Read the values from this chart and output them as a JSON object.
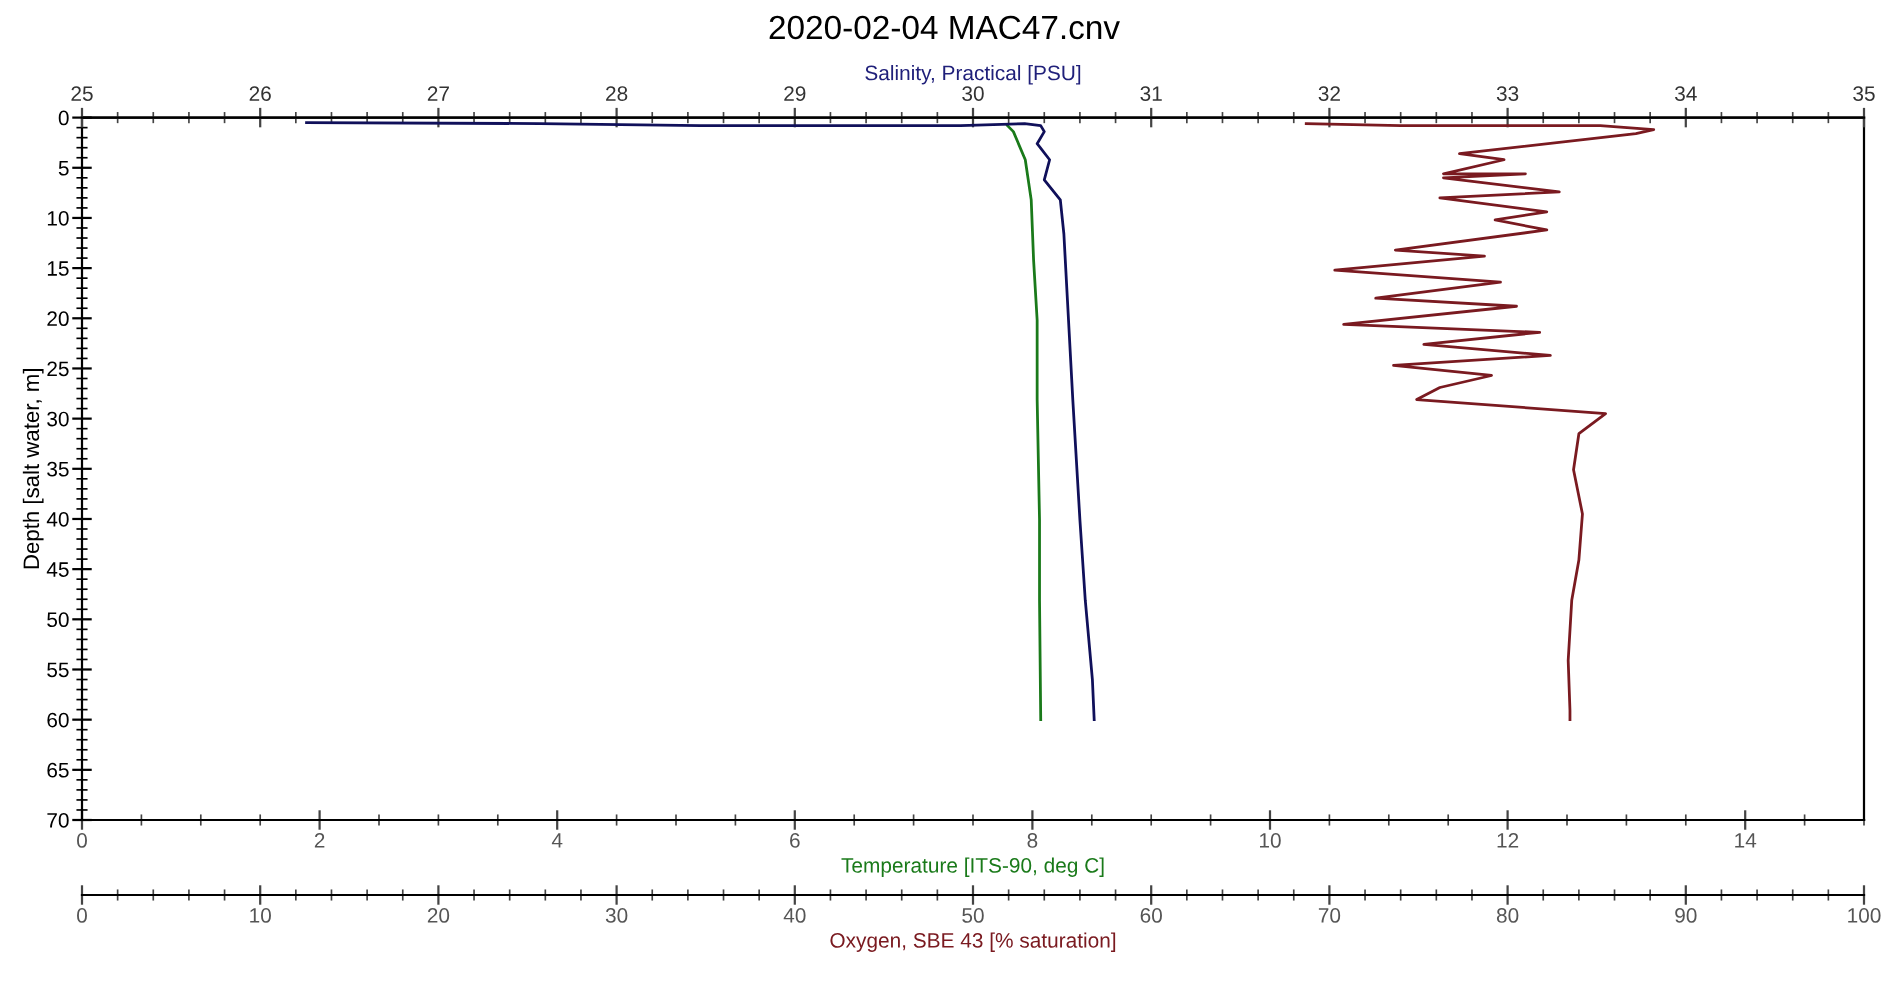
{
  "chart_data": [
    {
      "type": "line",
      "title": "2020-02-04 MAC47.cnv",
      "xlabel": "Temperature [ITS-90, deg C]",
      "x2label": "Salinity, Practical [PSU]",
      "ylabel": "Depth [salt water, m]",
      "xlim": [
        0,
        15
      ],
      "xticks": [
        0,
        2,
        4,
        6,
        8,
        10,
        12,
        14
      ],
      "x2lim": [
        25,
        35
      ],
      "x2ticks": [
        25,
        26,
        27,
        28,
        29,
        30,
        31,
        32,
        33,
        34,
        35
      ],
      "ylim": [
        70,
        0
      ],
      "yticks": [
        0,
        5,
        10,
        15,
        20,
        25,
        30,
        35,
        40,
        45,
        50,
        55,
        60,
        65,
        70
      ],
      "grid": false,
      "legend": false,
      "marker": "none",
      "line_style": "solid",
      "series": [
        {
          "color": "#1a7a1a",
          "x": [
            7.79,
            7.84,
            7.94,
            7.99,
            8.01,
            8.04,
            8.04,
            8.06,
            8.06,
            8.07
          ],
          "values": [
            0.8,
            1.4,
            4.2,
            8.2,
            14.2,
            20.2,
            28.1,
            40.1,
            48.1,
            60.0
          ]
        },
        {
          "axis": "x2",
          "color": "#10105a",
          "x": [
            26.26,
            27.57,
            28.47,
            29.93,
            30.29,
            30.38,
            30.4,
            30.36,
            30.43,
            30.4,
            30.49,
            30.51,
            30.53,
            30.56,
            30.6,
            30.63,
            30.67,
            30.68
          ],
          "values": [
            0.5,
            0.6,
            0.8,
            0.8,
            0.6,
            0.8,
            1.4,
            2.6,
            4.2,
            6.2,
            8.2,
            11.6,
            18.2,
            28.1,
            40.1,
            48.1,
            56.0,
            60.0
          ]
        }
      ]
    },
    {
      "type": "line",
      "xlabel": "Oxygen, SBE 43 [% saturation]",
      "xlim": [
        0,
        100
      ],
      "xticks": [
        0,
        10,
        20,
        30,
        40,
        50,
        60,
        70,
        80,
        90,
        100
      ],
      "ylim": [
        70,
        0
      ],
      "tick_labels": "x",
      "marker": "none",
      "line_style": "solid",
      "series": [
        {
          "color": "#7a1a20",
          "x": [
            68.7,
            74.0,
            85.2,
            88.2,
            87.2,
            77.3,
            79.8,
            76.4,
            81.0,
            76.4,
            82.9,
            76.2,
            82.2,
            79.3,
            82.2,
            73.7,
            78.7,
            70.3,
            79.6,
            72.6,
            80.5,
            70.8,
            81.8,
            75.3,
            82.4,
            73.6,
            79.1,
            76.2,
            74.9,
            85.5,
            84.0,
            83.7,
            84.2,
            84.0,
            83.6,
            83.4,
            83.5,
            83.5
          ],
          "values": [
            0.6,
            0.8,
            0.8,
            1.2,
            1.6,
            3.6,
            4.2,
            5.6,
            5.6,
            6.0,
            7.4,
            8.0,
            9.4,
            10.2,
            11.2,
            13.2,
            13.8,
            15.2,
            16.4,
            18.0,
            18.8,
            20.6,
            21.4,
            22.6,
            23.7,
            24.7,
            25.7,
            26.9,
            28.1,
            29.5,
            31.5,
            35.1,
            39.5,
            44.1,
            48.1,
            54.1,
            59.1,
            60.0
          ]
        }
      ]
    }
  ]
}
